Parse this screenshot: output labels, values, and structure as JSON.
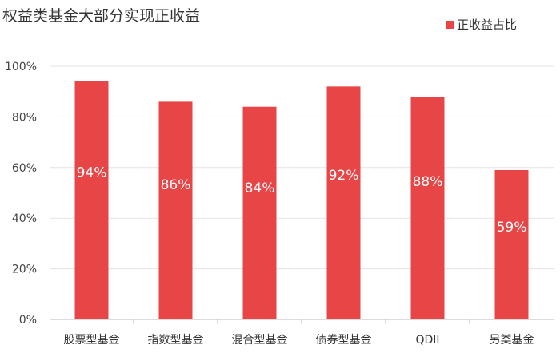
{
  "chart_data": {
    "type": "bar",
    "title": "权益类基金大部分实现正收益",
    "categories": [
      "股票型基金",
      "指数型基金",
      "混合型基金",
      "债券型基金",
      "QDII",
      "另类基金"
    ],
    "series": [
      {
        "name": "正收益占比",
        "values": [
          94,
          86,
          84,
          92,
          88,
          59
        ],
        "labels": [
          "94%",
          "86%",
          "84%",
          "92%",
          "88%",
          "59%"
        ],
        "color": "#e84546"
      }
    ],
    "ylim": [
      0,
      100
    ],
    "yticks": [
      0,
      20,
      40,
      60,
      80,
      100
    ],
    "ytick_labels": [
      "0%",
      "20%",
      "40%",
      "60%",
      "80%",
      "100%"
    ],
    "grid": true,
    "legend_position": "top-right"
  }
}
